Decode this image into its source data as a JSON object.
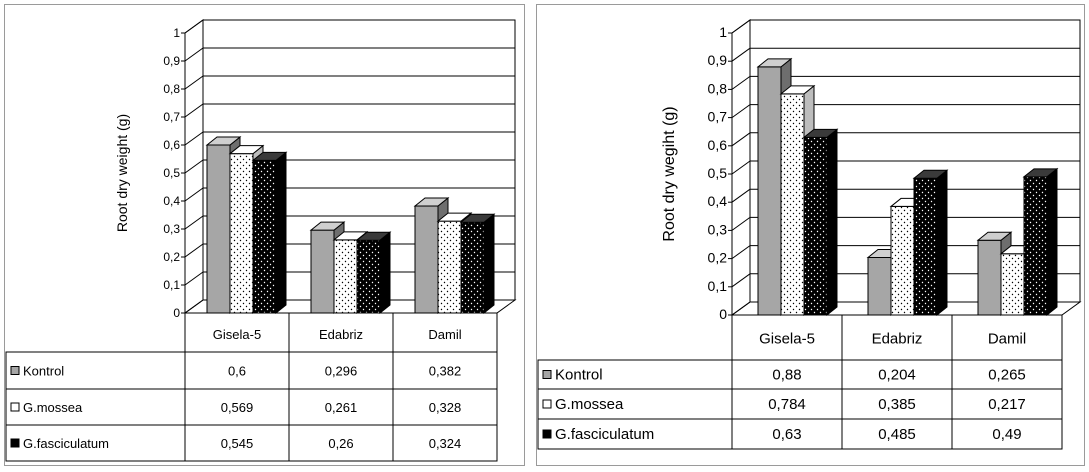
{
  "colors": {
    "kontrol": "#a6a6a6",
    "mossea": "#ffffff",
    "fasciculatum": "#000000",
    "grid": "#000000",
    "frame": "#9a9a9a"
  },
  "chart_data": [
    {
      "type": "bar",
      "ylabel": "Root dry weight (g)",
      "ylim": [
        0,
        1
      ],
      "y_ticks": [
        "0",
        "0,1",
        "0,2",
        "0,3",
        "0,4",
        "0,5",
        "0,6",
        "0,7",
        "0,8",
        "0,9",
        "1"
      ],
      "categories": [
        "Gisela-5",
        "Edabriz",
        "Damil"
      ],
      "series": [
        {
          "name": "Kontrol",
          "values": [
            0.6,
            0.296,
            0.382
          ],
          "labels": [
            "0,6",
            "0,296",
            "0,382"
          ]
        },
        {
          "name": "G.mossea",
          "values": [
            0.569,
            0.261,
            0.328
          ],
          "labels": [
            "0,569",
            "0,261",
            "0,328"
          ]
        },
        {
          "name": "G.fasciculatum",
          "values": [
            0.545,
            0.26,
            0.324
          ],
          "labels": [
            "0,545",
            "0,26",
            "0,324"
          ]
        }
      ],
      "grid": true,
      "legend": "data-table-left"
    },
    {
      "type": "bar",
      "ylabel": "Root dry wegiht (g)",
      "ylim": [
        0,
        1
      ],
      "y_ticks": [
        "0",
        "0,1",
        "0,2",
        "0,3",
        "0,4",
        "0,5",
        "0,6",
        "0,7",
        "0,8",
        "0,9",
        "1"
      ],
      "categories": [
        "Gisela-5",
        "Edabriz",
        "Damil"
      ],
      "series": [
        {
          "name": "Kontrol",
          "values": [
            0.88,
            0.204,
            0.265
          ],
          "labels": [
            "0,88",
            "0,204",
            "0,265"
          ]
        },
        {
          "name": "G.mossea",
          "values": [
            0.784,
            0.385,
            0.217
          ],
          "labels": [
            "0,784",
            "0,385",
            "0,217"
          ]
        },
        {
          "name": "G.fasciculatum",
          "values": [
            0.63,
            0.485,
            0.49
          ],
          "labels": [
            "0,63",
            "0,485",
            "0,49"
          ]
        }
      ],
      "grid": true,
      "legend": "data-table-left"
    }
  ]
}
